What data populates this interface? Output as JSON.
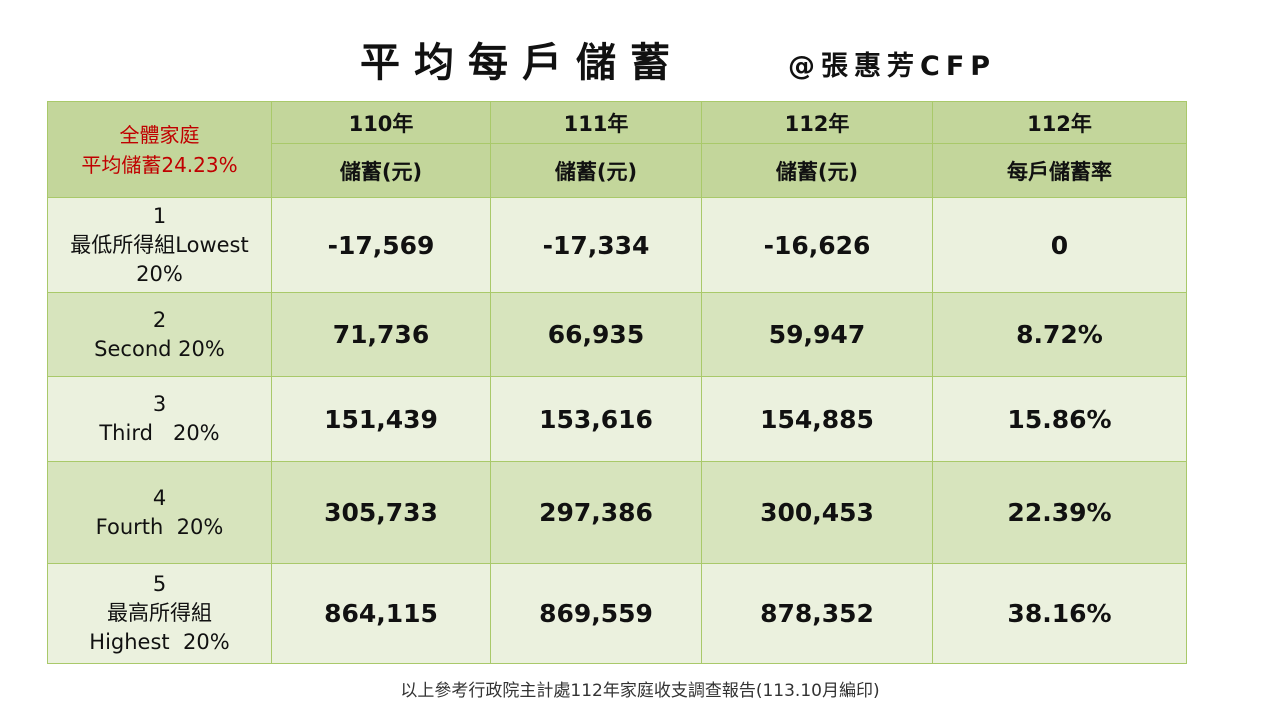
{
  "title": "平均每戶儲蓄",
  "author": "@張惠芳CFP",
  "header": {
    "corner_line1": "全體家庭",
    "corner_line2": "平均儲蓄24.23%",
    "columns": [
      {
        "year": "110年",
        "label": "儲蓄(元)"
      },
      {
        "year": "111年",
        "label": "儲蓄(元)"
      },
      {
        "year": "112年",
        "label": "儲蓄(元)"
      },
      {
        "year": "112年",
        "label": "每戶儲蓄率"
      }
    ]
  },
  "rows": [
    {
      "rank": "1",
      "name": "最低所得組Lowest",
      "pct": "20%",
      "values": [
        "-17,569",
        "-17,334",
        "-16,626",
        "0"
      ]
    },
    {
      "rank": "2",
      "name": "Second 20%",
      "pct": "",
      "values": [
        "71,736",
        "66,935",
        "59,947",
        "8.72%"
      ]
    },
    {
      "rank": "3",
      "name": "Third   20%",
      "pct": "",
      "values": [
        "151,439",
        "153,616",
        "154,885",
        "15.86%"
      ]
    },
    {
      "rank": "4",
      "name": "Fourth  20%",
      "pct": "",
      "values": [
        "305,733",
        "297,386",
        "300,453",
        "22.39%"
      ]
    },
    {
      "rank": "5",
      "name": "最高所得組",
      "pct": "Highest  20%",
      "values": [
        "864,115",
        "869,559",
        "878,352",
        "38.16%"
      ]
    }
  ],
  "footnote": "以上參考行政院主計處112年家庭收支調查報告(113.10月編印)"
}
